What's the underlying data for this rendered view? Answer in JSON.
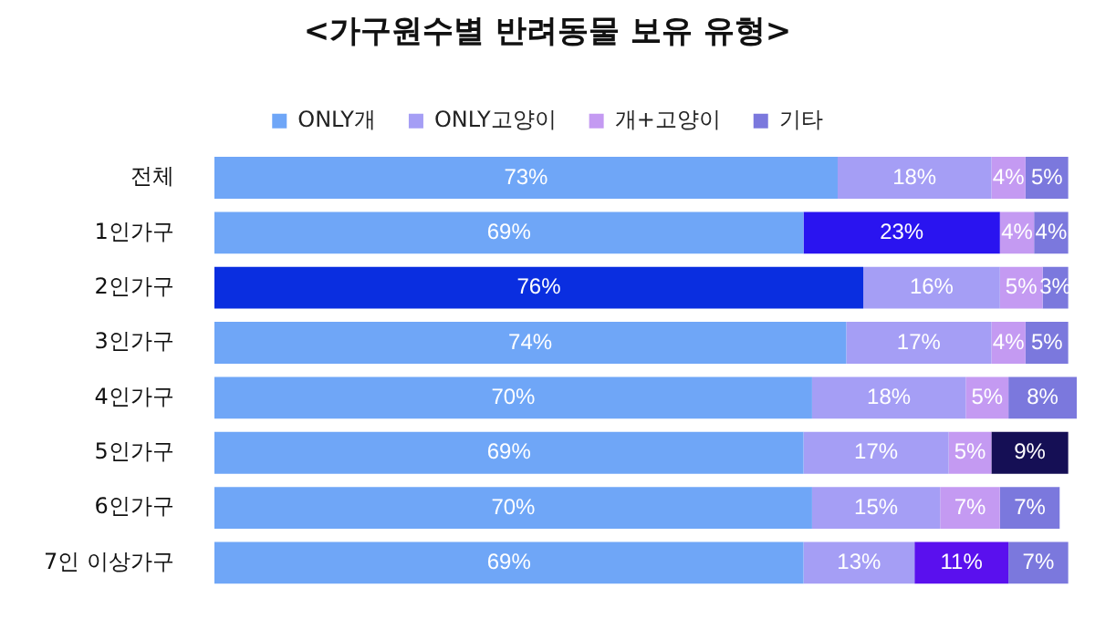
{
  "chart_data": {
    "type": "bar",
    "orientation": "horizontal",
    "stacked": true,
    "title": "<가구원수별 반려동물 보유 유형>",
    "categories": [
      "전체",
      "1인가구",
      "2인가구",
      "3인가구",
      "4인가구",
      "5인가구",
      "6인가구",
      "7인 이상가구"
    ],
    "series": [
      {
        "name": "ONLY개",
        "color": "#6fa6f7",
        "colors": [
          "#6fa6f7",
          "#6fa6f7",
          "#0a2ee0",
          "#6fa6f7",
          "#6fa6f7",
          "#6fa6f7",
          "#6fa6f7",
          "#6fa6f7"
        ],
        "values": [
          73,
          69,
          76,
          74,
          70,
          69,
          70,
          69
        ],
        "value_labels": [
          "73%",
          "69%",
          "76%",
          "74%",
          "70%",
          "69%",
          "70%",
          "69%"
        ]
      },
      {
        "name": "ONLY고양이",
        "color": "#a59ef5",
        "colors": [
          "#a59ef5",
          "#2a14f0",
          "#a59ef5",
          "#a59ef5",
          "#a59ef5",
          "#a59ef5",
          "#a59ef5",
          "#a59ef5"
        ],
        "values": [
          18,
          23,
          16,
          17,
          18,
          17,
          15,
          13
        ],
        "value_labels": [
          "18%",
          "23%",
          "16%",
          "17%",
          "18%",
          "17%",
          "15%",
          "13%"
        ]
      },
      {
        "name": "개+고양이",
        "color": "#c49af2",
        "colors": [
          "#c49af2",
          "#c49af2",
          "#c49af2",
          "#c49af2",
          "#c49af2",
          "#c49af2",
          "#c49af2",
          "#5a10ee"
        ],
        "values": [
          4,
          4,
          5,
          4,
          5,
          5,
          7,
          11
        ],
        "value_labels": [
          "4%",
          "4%",
          "5%",
          "4%",
          "5%",
          "5%",
          "7%",
          "11%"
        ]
      },
      {
        "name": "기타",
        "color": "#7b78dd",
        "colors": [
          "#7b78dd",
          "#7b78dd",
          "#7b78dd",
          "#7b78dd",
          "#7b78dd",
          "#150f55",
          "#7b78dd",
          "#7b78dd"
        ],
        "values": [
          5,
          4,
          3,
          5,
          8,
          9,
          7,
          7
        ],
        "value_labels": [
          "5%",
          "4%",
          "3%",
          "5%",
          "8%",
          "9%",
          "7%",
          "7%"
        ]
      }
    ],
    "legend": "top",
    "tick_labels": "y",
    "grid": false
  }
}
